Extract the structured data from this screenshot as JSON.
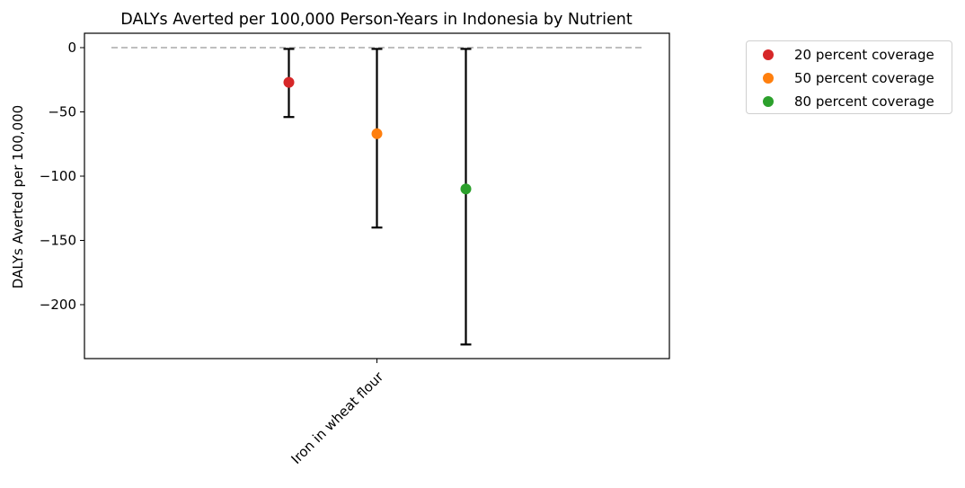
{
  "chart_data": {
    "type": "scatter",
    "title": "DALYs Averted per 100,000 Person-Years in Indonesia by Nutrient",
    "xlabel": "",
    "ylabel": "DALYs Averted per 100,000",
    "categories": [
      "Iron in wheat flour"
    ],
    "ylim": [
      -242,
      11
    ],
    "yticks": [
      0,
      -50,
      -100,
      -150,
      -200
    ],
    "ytick_labels": [
      "0",
      "−50",
      "−100",
      "−150",
      "−200"
    ],
    "reference_line": 0,
    "grid": false,
    "legend_placement": "outside upper right",
    "series": [
      {
        "name": "20 percent coverage",
        "color": "#d62728",
        "value": -27,
        "err_low": -54,
        "err_high": -1
      },
      {
        "name": "50 percent coverage",
        "color": "#ff7f0e",
        "value": -67,
        "err_low": -140,
        "err_high": -1
      },
      {
        "name": "80 percent coverage",
        "color": "#2ca02c",
        "value": -110,
        "err_low": -231,
        "err_high": -1
      }
    ]
  }
}
